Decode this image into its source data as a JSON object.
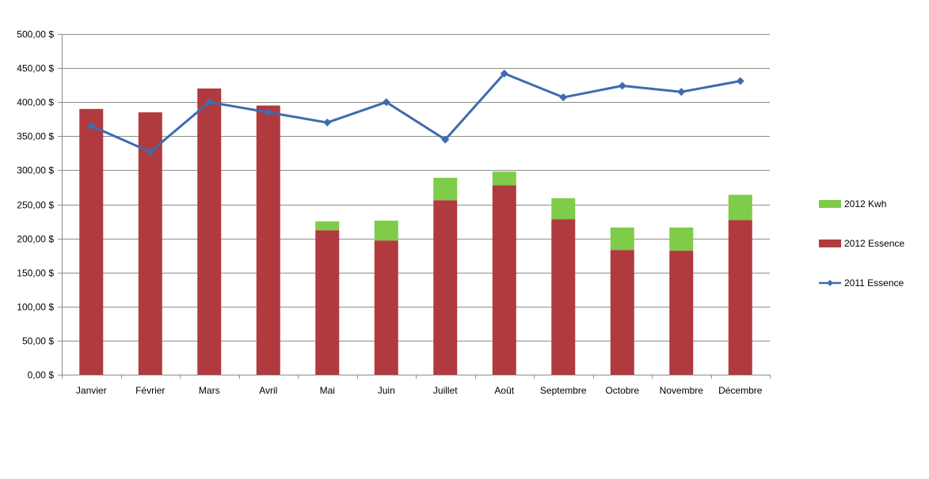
{
  "colors": {
    "kwh": "#7ECC49",
    "essence_2012": "#B13A3E",
    "essence_2011": "#3F6BAF",
    "gridline": "#8C8C8C",
    "axis": "#8C8C8C"
  },
  "chart_data": {
    "type": "bar",
    "stacked": true,
    "categories": [
      "Janvier",
      "Février",
      "Mars",
      "Avril",
      "Mai",
      "Juin",
      "Juillet",
      "Août",
      "Septembre",
      "Octobre",
      "Novembre",
      "Décembre"
    ],
    "series": [
      {
        "name": "2012 Essence",
        "type": "bar",
        "color": "#B13A3E",
        "values": [
          390,
          385,
          420,
          395,
          212,
          197,
          256,
          278,
          228,
          183,
          182,
          227
        ]
      },
      {
        "name": "2012 Kwh",
        "type": "bar",
        "color": "#7ECC49",
        "values": [
          0,
          0,
          0,
          0,
          13,
          29,
          33,
          20,
          31,
          33,
          34,
          37
        ]
      },
      {
        "name": "2011 Essence",
        "type": "line",
        "marker": "diamond",
        "color": "#3F6BAF",
        "values": [
          365,
          327,
          400,
          385,
          370,
          400,
          345,
          442,
          407,
          424,
          415,
          431
        ]
      }
    ],
    "ylim": [
      0,
      500
    ],
    "ytick_values": [
      0,
      50,
      100,
      150,
      200,
      250,
      300,
      350,
      400,
      450,
      500
    ],
    "ytick_labels": [
      "0,00 $",
      "50,00 $",
      "100,00 $",
      "150,00 $",
      "200,00 $",
      "250,00 $",
      "300,00 $",
      "350,00 $",
      "400,00 $",
      "450,00 $",
      "500,00 $"
    ],
    "grid": true,
    "legend_position": "right",
    "legend": [
      "2012 Kwh",
      "2012 Essence",
      "2011 Essence"
    ],
    "title": "",
    "xlabel": "",
    "ylabel": ""
  }
}
